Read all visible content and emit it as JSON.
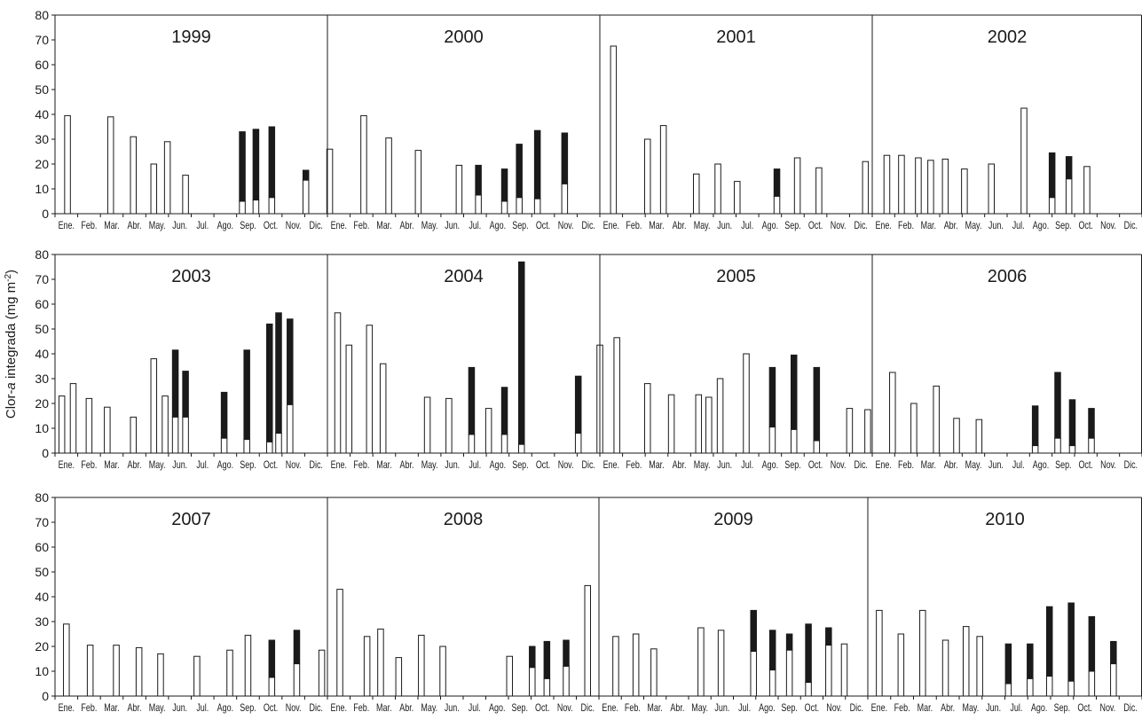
{
  "chart_data": {
    "type": "bar",
    "stacked": true,
    "ylabel_parts": [
      "Clor-",
      "a",
      " integrada (mg m",
      "-2",
      ")"
    ],
    "ylim": [
      0,
      80
    ],
    "yticks": [
      0,
      10,
      20,
      30,
      40,
      50,
      60,
      70,
      80
    ],
    "months": [
      "Ene.",
      "Feb.",
      "Mar.",
      "Abr.",
      "May.",
      "Jun.",
      "Jul.",
      "Ago.",
      "Sep.",
      "Oct.",
      "Nov.",
      "Dic."
    ],
    "legend": "none",
    "grid": false,
    "series_fill": {
      "lower": "#ffffff",
      "upper": "#1a1a1a"
    },
    "panels": [
      {
        "years": [
          {
            "year": "1999",
            "bars": [
              {
                "m": 0.05,
                "total": 39.5,
                "low": 39.5
              },
              {
                "m": 1.95,
                "total": 39,
                "low": 39
              },
              {
                "m": 2.95,
                "total": 31,
                "low": 31
              },
              {
                "m": 3.85,
                "total": 20,
                "low": 20
              },
              {
                "m": 4.45,
                "total": 29,
                "low": 29
              },
              {
                "m": 5.25,
                "total": 15.5,
                "low": 15.5
              },
              {
                "m": 7.75,
                "total": 33,
                "low": 5
              },
              {
                "m": 8.35,
                "total": 34,
                "low": 5.5
              },
              {
                "m": 9.05,
                "total": 35,
                "low": 6.5
              },
              {
                "m": 10.55,
                "total": 17.5,
                "low": 13.5
              },
              {
                "m": 11.6,
                "total": 26,
                "low": 26
              }
            ]
          },
          {
            "year": "2000",
            "bars": [
              {
                "m": 1.1,
                "total": 39.5,
                "low": 39.5
              },
              {
                "m": 2.2,
                "total": 30.5,
                "low": 30.5
              },
              {
                "m": 3.5,
                "total": 25.5,
                "low": 25.5
              },
              {
                "m": 5.3,
                "total": 19.5,
                "low": 19.5
              },
              {
                "m": 6.15,
                "total": 19.5,
                "low": 7.5
              },
              {
                "m": 7.3,
                "total": 18,
                "low": 5
              },
              {
                "m": 7.95,
                "total": 28,
                "low": 6.5
              },
              {
                "m": 8.75,
                "total": 33.5,
                "low": 6
              },
              {
                "m": 9.95,
                "total": 32.5,
                "low": 12
              }
            ]
          },
          {
            "year": "2001",
            "bars": [
              {
                "m": 0.1,
                "total": 67.5,
                "low": 67.5
              },
              {
                "m": 1.6,
                "total": 30,
                "low": 30
              },
              {
                "m": 2.3,
                "total": 35.5,
                "low": 35.5
              },
              {
                "m": 3.75,
                "total": 16,
                "low": 16
              },
              {
                "m": 4.7,
                "total": 20,
                "low": 20
              },
              {
                "m": 5.55,
                "total": 13,
                "low": 13
              },
              {
                "m": 7.3,
                "total": 18,
                "low": 7
              },
              {
                "m": 8.2,
                "total": 22.5,
                "low": 22.5
              },
              {
                "m": 9.15,
                "total": 18.5,
                "low": 18.5
              },
              {
                "m": 11.2,
                "total": 21,
                "low": 21
              }
            ]
          },
          {
            "year": "2002",
            "bars": [
              {
                "m": 0.15,
                "total": 23.5,
                "low": 23.5
              },
              {
                "m": 0.8,
                "total": 23.5,
                "low": 23.5
              },
              {
                "m": 1.55,
                "total": 22.5,
                "low": 22.5
              },
              {
                "m": 2.1,
                "total": 21.5,
                "low": 21.5
              },
              {
                "m": 2.75,
                "total": 22,
                "low": 22
              },
              {
                "m": 3.6,
                "total": 18,
                "low": 18
              },
              {
                "m": 4.8,
                "total": 20,
                "low": 20
              },
              {
                "m": 6.25,
                "total": 42.5,
                "low": 42.5
              },
              {
                "m": 7.5,
                "total": 24.5,
                "low": 6.5
              },
              {
                "m": 8.25,
                "total": 23,
                "low": 14
              },
              {
                "m": 9.05,
                "total": 19,
                "low": 19
              }
            ]
          }
        ]
      },
      {
        "years": [
          {
            "year": "2003",
            "bars": [
              {
                "m": -0.2,
                "total": 23,
                "low": 23
              },
              {
                "m": 0.3,
                "total": 28,
                "low": 28
              },
              {
                "m": 1.0,
                "total": 22,
                "low": 22
              },
              {
                "m": 1.8,
                "total": 18.5,
                "low": 18.5
              },
              {
                "m": 2.95,
                "total": 14.5,
                "low": 14.5
              },
              {
                "m": 3.85,
                "total": 38,
                "low": 38
              },
              {
                "m": 4.35,
                "total": 23,
                "low": 23
              },
              {
                "m": 4.8,
                "total": 41.5,
                "low": 14.5
              },
              {
                "m": 5.25,
                "total": 33,
                "low": 14.5
              },
              {
                "m": 6.95,
                "total": 24.5,
                "low": 6
              },
              {
                "m": 7.95,
                "total": 41.5,
                "low": 5.5
              },
              {
                "m": 8.95,
                "total": 52,
                "low": 4.5
              },
              {
                "m": 9.35,
                "total": 56.5,
                "low": 8
              },
              {
                "m": 9.85,
                "total": 54,
                "low": 19.5
              }
            ]
          },
          {
            "year": "2004",
            "bars": [
              {
                "m": -0.05,
                "total": 56.5,
                "low": 56.5
              },
              {
                "m": 0.45,
                "total": 43.5,
                "low": 43.5
              },
              {
                "m": 1.35,
                "total": 51.5,
                "low": 51.5
              },
              {
                "m": 1.95,
                "total": 36,
                "low": 36
              },
              {
                "m": 3.9,
                "total": 22.5,
                "low": 22.5
              },
              {
                "m": 4.85,
                "total": 22,
                "low": 22
              },
              {
                "m": 5.85,
                "total": 34.5,
                "low": 7.5
              },
              {
                "m": 6.6,
                "total": 18,
                "low": 18
              },
              {
                "m": 7.3,
                "total": 26.5,
                "low": 7.5
              },
              {
                "m": 8.05,
                "total": 77,
                "low": 3.5
              },
              {
                "m": 10.55,
                "total": 31,
                "low": 8
              },
              {
                "m": 11.5,
                "total": 43.5,
                "low": 43.5
              }
            ]
          },
          {
            "year": "2005",
            "bars": [
              {
                "m": 0.25,
                "total": 46.5,
                "low": 46.5
              },
              {
                "m": 1.6,
                "total": 28,
                "low": 28
              },
              {
                "m": 2.65,
                "total": 23.5,
                "low": 23.5
              },
              {
                "m": 3.85,
                "total": 23.5,
                "low": 23.5
              },
              {
                "m": 4.3,
                "total": 22.5,
                "low": 22.5
              },
              {
                "m": 4.8,
                "total": 30,
                "low": 30
              },
              {
                "m": 5.95,
                "total": 40,
                "low": 40
              },
              {
                "m": 7.1,
                "total": 34.5,
                "low": 10.5
              },
              {
                "m": 8.05,
                "total": 39.5,
                "low": 9.5
              },
              {
                "m": 9.05,
                "total": 34.5,
                "low": 5
              },
              {
                "m": 10.5,
                "total": 18,
                "low": 18
              },
              {
                "m": 11.3,
                "total": 17.5,
                "low": 17.5
              }
            ]
          },
          {
            "year": "2006",
            "bars": [
              {
                "m": 0.4,
                "total": 32.5,
                "low": 32.5
              },
              {
                "m": 1.35,
                "total": 20,
                "low": 20
              },
              {
                "m": 2.35,
                "total": 27,
                "low": 27
              },
              {
                "m": 3.25,
                "total": 14,
                "low": 14
              },
              {
                "m": 4.25,
                "total": 13.5,
                "low": 13.5
              },
              {
                "m": 6.75,
                "total": 19,
                "low": 3
              },
              {
                "m": 7.75,
                "total": 32.5,
                "low": 6
              },
              {
                "m": 8.4,
                "total": 21.5,
                "low": 3
              },
              {
                "m": 9.25,
                "total": 18,
                "low": 6
              }
            ]
          }
        ]
      },
      {
        "years": [
          {
            "year": "2007",
            "bars": [
              {
                "m": 0.0,
                "total": 29,
                "low": 29
              },
              {
                "m": 1.05,
                "total": 20.5,
                "low": 20.5
              },
              {
                "m": 2.2,
                "total": 20.5,
                "low": 20.5
              },
              {
                "m": 3.2,
                "total": 19.5,
                "low": 19.5
              },
              {
                "m": 4.15,
                "total": 17,
                "low": 17
              },
              {
                "m": 5.75,
                "total": 16,
                "low": 16
              },
              {
                "m": 7.2,
                "total": 18.5,
                "low": 18.5
              },
              {
                "m": 8.0,
                "total": 24.5,
                "low": 24.5
              },
              {
                "m": 9.05,
                "total": 22.5,
                "low": 7.5
              },
              {
                "m": 10.15,
                "total": 26.5,
                "low": 13
              },
              {
                "m": 11.25,
                "total": 18.5,
                "low": 18.5
              }
            ]
          },
          {
            "year": "2008",
            "bars": [
              {
                "m": 0.05,
                "total": 43,
                "low": 43
              },
              {
                "m": 1.25,
                "total": 24,
                "low": 24
              },
              {
                "m": 1.85,
                "total": 27,
                "low": 27
              },
              {
                "m": 2.65,
                "total": 15.5,
                "low": 15.5
              },
              {
                "m": 3.65,
                "total": 24.5,
                "low": 24.5
              },
              {
                "m": 4.6,
                "total": 20,
                "low": 20
              },
              {
                "m": 7.55,
                "total": 16,
                "low": 16
              },
              {
                "m": 8.55,
                "total": 20,
                "low": 11.5
              },
              {
                "m": 9.2,
                "total": 22,
                "low": 7
              },
              {
                "m": 10.05,
                "total": 22.5,
                "low": 12
              },
              {
                "m": 11.0,
                "total": 44.5,
                "low": 44.5
              }
            ]
          },
          {
            "year": "2009",
            "bars": [
              {
                "m": 0.25,
                "total": 24,
                "low": 24
              },
              {
                "m": 1.15,
                "total": 25,
                "low": 25
              },
              {
                "m": 1.95,
                "total": 19,
                "low": 19
              },
              {
                "m": 4.05,
                "total": 27.5,
                "low": 27.5
              },
              {
                "m": 4.95,
                "total": 26.5,
                "low": 26.5
              },
              {
                "m": 6.4,
                "total": 34.5,
                "low": 18
              },
              {
                "m": 7.25,
                "total": 26.5,
                "low": 10.5
              },
              {
                "m": 8.0,
                "total": 25,
                "low": 18.5
              },
              {
                "m": 8.85,
                "total": 29,
                "low": 5.5
              },
              {
                "m": 9.75,
                "total": 27.5,
                "low": 20.5
              },
              {
                "m": 10.45,
                "total": 21,
                "low": 21
              }
            ]
          },
          {
            "year": "2010",
            "bars": [
              {
                "m": 0.0,
                "total": 34.5,
                "low": 34.5
              },
              {
                "m": 0.95,
                "total": 25,
                "low": 25
              },
              {
                "m": 1.9,
                "total": 34.5,
                "low": 34.5
              },
              {
                "m": 2.9,
                "total": 22.5,
                "low": 22.5
              },
              {
                "m": 3.8,
                "total": 28,
                "low": 28
              },
              {
                "m": 4.4,
                "total": 24,
                "low": 24
              },
              {
                "m": 5.65,
                "total": 21,
                "low": 5
              },
              {
                "m": 6.6,
                "total": 21,
                "low": 7
              },
              {
                "m": 7.45,
                "total": 36,
                "low": 8
              },
              {
                "m": 8.4,
                "total": 37.5,
                "low": 6
              },
              {
                "m": 9.3,
                "total": 32,
                "low": 10
              },
              {
                "m": 10.25,
                "total": 22,
                "low": 13
              }
            ]
          }
        ]
      }
    ]
  }
}
